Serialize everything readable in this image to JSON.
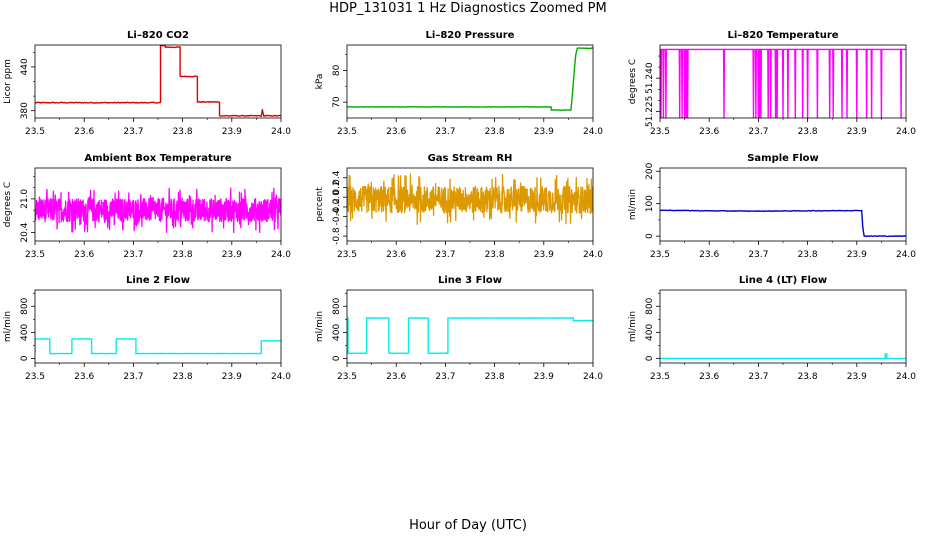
{
  "figure": {
    "title": "HDP_131031  1 Hz Diagnostics Zoomed PM",
    "xlabel": "Hour of Day (UTC)"
  },
  "chart_data": [
    {
      "type": "line",
      "title": "Li–820 CO2",
      "ylabel": "Licor ppm",
      "color": "#dd0000",
      "xlim": [
        23.5,
        24.0
      ],
      "ylim": [
        370,
        470
      ],
      "xticks": [
        "23.5",
        "23.6",
        "23.7",
        "23.8",
        "23.9",
        "24.0"
      ],
      "xtick_values": [
        23.5,
        23.6,
        23.7,
        23.8,
        23.9,
        24.0
      ],
      "yticks": [
        "380",
        "440"
      ],
      "ytick_values": [
        380,
        440
      ],
      "yminor": [
        400,
        420,
        460
      ],
      "series": [
        {
          "x": [
            23.5,
            23.755,
            23.755,
            23.765,
            23.765,
            23.795,
            23.795,
            23.83,
            23.83,
            23.875,
            23.875,
            23.96,
            23.962,
            23.965,
            24.0
          ],
          "y": [
            391,
            391,
            469,
            469,
            467,
            467,
            427,
            427,
            392,
            392,
            373,
            373,
            381,
            373,
            373
          ],
          "noise": 1.2
        }
      ]
    },
    {
      "type": "line",
      "title": "Li–820 Pressure",
      "ylabel": "kPa",
      "color": "#00aa00",
      "xlim": [
        23.5,
        24.0
      ],
      "ylim": [
        65,
        88
      ],
      "xticks": [
        "23.5",
        "23.6",
        "23.7",
        "23.8",
        "23.9",
        "24.0"
      ],
      "xtick_values": [
        23.5,
        23.6,
        23.7,
        23.8,
        23.9,
        24.0
      ],
      "yticks": [
        "70",
        "80"
      ],
      "ytick_values": [
        70,
        80
      ],
      "yminor": [
        75,
        85
      ],
      "series": [
        {
          "x": [
            23.5,
            23.915,
            23.915,
            23.955,
            23.958,
            23.962,
            23.965,
            23.968,
            24.0
          ],
          "y": [
            68.5,
            68.5,
            67.5,
            67.5,
            72,
            80,
            85,
            87,
            87
          ],
          "noise": 0.15
        }
      ]
    },
    {
      "type": "line",
      "title": "Li–820 Temperature",
      "ylabel": "degrees C",
      "color": "#ff00ff",
      "xlim": [
        23.5,
        24.0
      ],
      "ylim": [
        51.222,
        51.255
      ],
      "xticks": [
        "23.5",
        "23.6",
        "23.7",
        "23.8",
        "23.9",
        "24.0"
      ],
      "xtick_values": [
        23.5,
        23.6,
        23.7,
        23.8,
        23.9,
        24.0
      ],
      "yticks": [
        "51.225",
        "51.240"
      ],
      "ytick_values": [
        51.225,
        51.24
      ],
      "yminor": [
        51.23,
        51.235,
        51.245,
        51.25
      ],
      "series": [
        {
          "baseline": 51.253,
          "low": 51.222,
          "spikes": [
            23.502,
            23.507,
            23.512,
            23.54,
            23.545,
            23.55,
            23.553,
            23.556,
            23.63,
            23.69,
            23.695,
            23.7,
            23.702,
            23.705,
            23.72,
            23.725,
            23.735,
            23.738,
            23.75,
            23.76,
            23.775,
            23.79,
            23.8,
            23.82,
            23.845,
            23.852,
            23.87,
            23.88,
            23.9,
            23.92,
            23.93,
            23.95,
            23.99
          ]
        }
      ]
    },
    {
      "type": "line",
      "title": "Ambient Box Temperature",
      "ylabel": "degrees C",
      "color": "#ff00ff",
      "xlim": [
        23.5,
        24.0
      ],
      "ylim": [
        20.25,
        21.55
      ],
      "xticks": [
        "23.5",
        "23.6",
        "23.7",
        "23.8",
        "23.9",
        "24.0"
      ],
      "xtick_values": [
        23.5,
        23.6,
        23.7,
        23.8,
        23.9,
        24.0
      ],
      "yticks": [
        "20.4",
        "21.0"
      ],
      "ytick_values": [
        20.4,
        21.0
      ],
      "yminor": [
        20.6,
        20.8,
        21.2,
        21.4
      ],
      "series": [
        {
          "mean": 20.8,
          "noise": 0.42,
          "n": 900
        }
      ]
    },
    {
      "type": "line",
      "title": "Gas Stream RH",
      "ylabel": "percent",
      "color": "#dd9900",
      "xlim": [
        23.5,
        24.0
      ],
      "ylim": [
        -0.9,
        0.6
      ],
      "xticks": [
        "23.5",
        "23.6",
        "23.7",
        "23.8",
        "23.9",
        "24.0"
      ],
      "xtick_values": [
        23.5,
        23.6,
        23.7,
        23.8,
        23.9,
        24.0
      ],
      "yticks": [
        "-0.8",
        "-0.4",
        "-0.2",
        "0.0",
        "0.2",
        "0.4"
      ],
      "ytick_values": [
        -0.8,
        -0.4,
        -0.2,
        0.0,
        0.2,
        0.4
      ],
      "yminor": [
        -0.6
      ],
      "series": [
        {
          "mean": -0.05,
          "noise": 0.55,
          "n": 900
        }
      ]
    },
    {
      "type": "line",
      "title": "Sample Flow",
      "ylabel": "ml/min",
      "color": "#0000cc",
      "xlim": [
        23.5,
        24.0
      ],
      "ylim": [
        -15,
        210
      ],
      "xticks": [
        "23.5",
        "23.6",
        "23.7",
        "23.8",
        "23.9",
        "24.0"
      ],
      "xtick_values": [
        23.5,
        23.6,
        23.7,
        23.8,
        23.9,
        24.0
      ],
      "yticks": [
        "0",
        "100",
        "200"
      ],
      "ytick_values": [
        0,
        100,
        200
      ],
      "yminor": [
        50,
        150
      ],
      "series": [
        {
          "x": [
            23.5,
            23.6,
            23.7,
            23.8,
            23.91,
            23.912,
            23.915,
            23.92,
            24.0
          ],
          "y": [
            80,
            78,
            77,
            78,
            79,
            30,
            0,
            0,
            0
          ],
          "noise": 1.6
        }
      ]
    },
    {
      "type": "line",
      "title": "Line 2 Flow",
      "ylabel": "ml/min",
      "color": "#00eeee",
      "xlim": [
        23.5,
        24.0
      ],
      "ylim": [
        -70,
        1050
      ],
      "xticks": [
        "23.5",
        "23.6",
        "23.7",
        "23.8",
        "23.9",
        "24.0"
      ],
      "xtick_values": [
        23.5,
        23.6,
        23.7,
        23.8,
        23.9,
        24.0
      ],
      "yticks": [
        "0",
        "400",
        "800"
      ],
      "ytick_values": [
        0,
        400,
        800
      ],
      "yminor": [
        200,
        600,
        1000
      ],
      "series": [
        {
          "x": [
            23.5,
            23.5,
            23.508,
            23.508,
            23.53,
            23.53,
            23.555,
            23.555,
            23.575,
            23.575,
            23.615,
            23.615,
            23.64,
            23.64,
            23.665,
            23.665,
            23.705,
            23.705,
            23.96,
            23.96,
            24.0
          ],
          "y": [
            100,
            300,
            300,
            300,
            300,
            75,
            75,
            75,
            75,
            300,
            300,
            75,
            75,
            75,
            75,
            300,
            300,
            75,
            75,
            270,
            270
          ],
          "noise": 4
        }
      ]
    },
    {
      "type": "line",
      "title": "Line 3 Flow",
      "ylabel": "ml/min",
      "color": "#00eeee",
      "xlim": [
        23.5,
        24.0
      ],
      "ylim": [
        -70,
        1050
      ],
      "xticks": [
        "23.5",
        "23.6",
        "23.7",
        "23.8",
        "23.9",
        "24.0"
      ],
      "xtick_values": [
        23.5,
        23.6,
        23.7,
        23.8,
        23.9,
        24.0
      ],
      "yticks": [
        "0",
        "400",
        "800"
      ],
      "ytick_values": [
        0,
        400,
        800
      ],
      "yminor": [
        200,
        600,
        1000
      ],
      "series": [
        {
          "x": [
            23.5,
            23.5,
            23.502,
            23.502,
            23.54,
            23.54,
            23.585,
            23.585,
            23.625,
            23.625,
            23.665,
            23.665,
            23.705,
            23.705,
            23.96,
            23.96,
            24.0
          ],
          "y": [
            100,
            620,
            620,
            80,
            80,
            620,
            620,
            80,
            80,
            620,
            620,
            80,
            80,
            620,
            620,
            580,
            580
          ],
          "noise": 4
        }
      ]
    },
    {
      "type": "line",
      "title": "Line 4 (LT) Flow",
      "ylabel": "ml/min",
      "color": "#00eeee",
      "xlim": [
        23.5,
        24.0
      ],
      "ylim": [
        -70,
        1050
      ],
      "xticks": [
        "23.5",
        "23.6",
        "23.7",
        "23.8",
        "23.9",
        "24.0"
      ],
      "xtick_values": [
        23.5,
        23.6,
        23.7,
        23.8,
        23.9,
        24.0
      ],
      "yticks": [
        "0",
        "400",
        "800"
      ],
      "ytick_values": [
        0,
        400,
        800
      ],
      "yminor": [
        200,
        600,
        1000
      ],
      "series": [
        {
          "x": [
            23.5,
            23.958,
            23.958,
            23.961,
            23.961,
            24.0
          ],
          "y": [
            0,
            0,
            70,
            70,
            0,
            0
          ],
          "noise": 0
        }
      ]
    }
  ]
}
